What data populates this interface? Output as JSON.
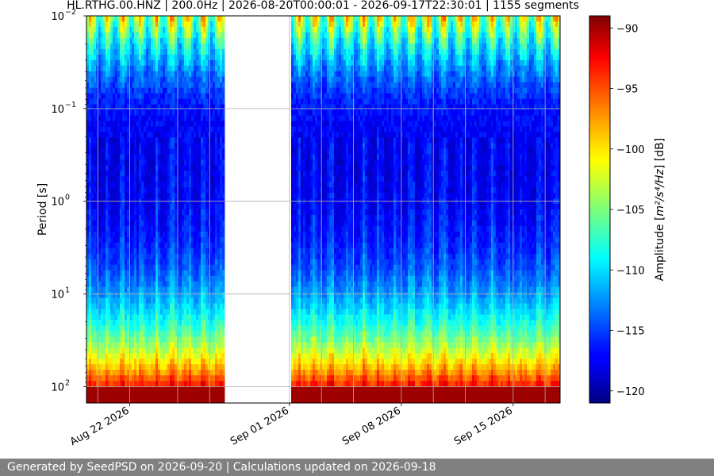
{
  "chart_data": {
    "type": "heatmap",
    "title": "HL.RTHG.00.HNZ | 200.0Hz | 2026-08-20T00:00:01 - 2026-09-17T22:30:01 | 1155 segments",
    "ylabel": "Period [s]",
    "yscale": "log",
    "yaxis_inverted": true,
    "ylim": [
      0.01,
      150
    ],
    "ytick_values": [
      0.01,
      0.1,
      1,
      10,
      100
    ],
    "ytick_labels": [
      {
        "base": "10",
        "exp": "−2"
      },
      {
        "base": "10",
        "exp": "−1"
      },
      {
        "base": "10",
        "exp": "0"
      },
      {
        "base": "10",
        "exp": "1"
      },
      {
        "base": "10",
        "exp": "2"
      }
    ],
    "xlim": [
      "2026-08-19T07:00:00",
      "2026-09-17T22:30:00"
    ],
    "xtick_values": [
      "2026-08-22",
      "2026-09-01",
      "2026-09-08",
      "2026-09-15"
    ],
    "xtick_labels": [
      "Aug 22 2026",
      "Sep 01 2026",
      "Sep 08 2026",
      "Sep 15 2026"
    ],
    "data_gaps": [
      [
        "2026-08-28T00:00:00",
        "2026-09-01T02:00:00"
      ]
    ],
    "colorbar": {
      "label_prefix": "Amplitude [",
      "label_unit": "m²/s⁴/Hz",
      "label_suffix": "] [dB]",
      "range": [
        -121,
        -89
      ],
      "ticks": [
        -90,
        -95,
        -100,
        -105,
        -110,
        -115,
        -120
      ],
      "tick_labels": [
        "−90",
        "−95",
        "−100",
        "−105",
        "−110",
        "−115",
        "−120"
      ],
      "colormap": "jet"
    },
    "grid": true
  },
  "footer": {
    "text": "Generated by SeedPSD on 2026-09-20 | Calculations updated on 2026-09-18"
  }
}
